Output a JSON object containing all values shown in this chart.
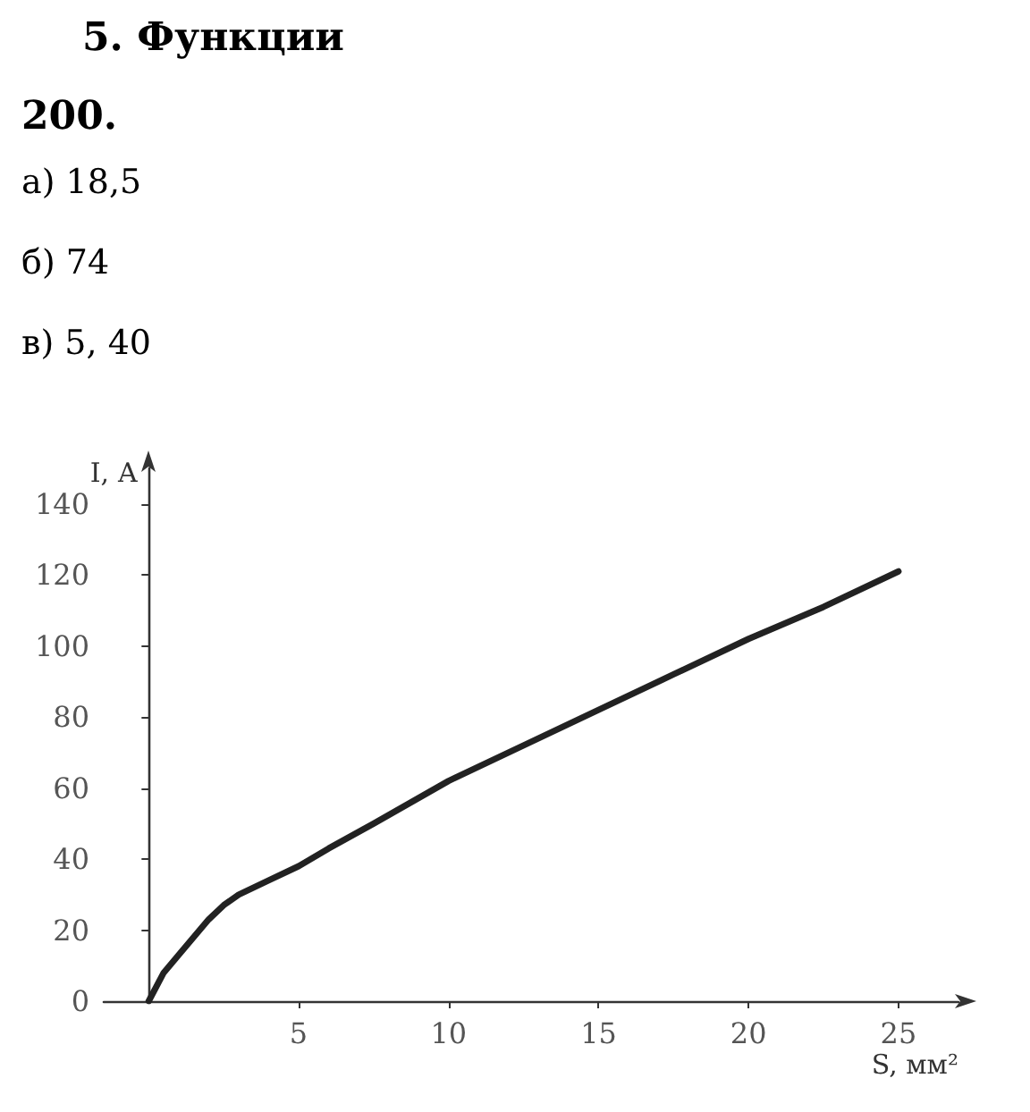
{
  "chart_data": {
    "type": "line",
    "title": "5.  Функции",
    "subtitle": "200.",
    "annotations": [
      "а) 18,5",
      "б) 74",
      "в) 5, 40"
    ],
    "xlabel": "S, мм²",
    "ylabel": "I, А",
    "x": [
      0,
      0.5,
      1,
      2,
      2.5,
      3,
      4,
      5,
      6,
      7.5,
      10,
      12.5,
      15,
      17.5,
      20,
      22.5,
      25
    ],
    "series": [
      {
        "color": "#222222",
        "values": [
          0,
          8,
          13,
          23,
          27,
          30,
          34,
          38,
          43,
          50,
          62,
          72,
          82,
          92,
          102,
          111,
          121
        ]
      }
    ],
    "xlim": [
      -1.5,
      27
    ],
    "ylim": [
      0,
      150
    ],
    "xticks": [
      5,
      10,
      15,
      20,
      25
    ],
    "yticks": [
      0,
      20,
      40,
      60,
      80,
      100,
      120,
      140
    ],
    "grid": false,
    "marker": "none",
    "line_style": "solid"
  }
}
